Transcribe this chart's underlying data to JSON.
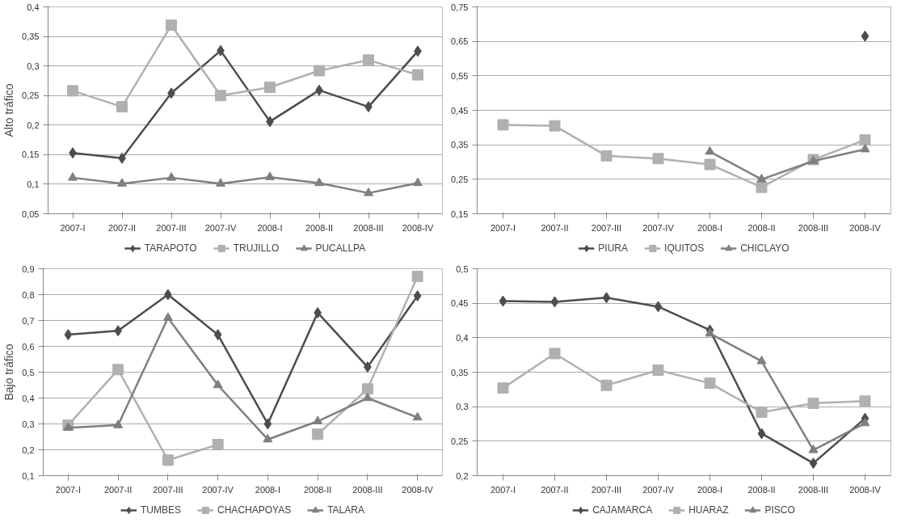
{
  "chart_data": [
    {
      "type": "line",
      "ylabel": "Alto tráfico",
      "categories": [
        "2007-I",
        "2007-II",
        "2007-III",
        "2007-IV",
        "2008-I",
        "2008-II",
        "2008-III",
        "2008-IV"
      ],
      "ylim": [
        0.05,
        0.4
      ],
      "yticks": [
        {
          "value": 0.05,
          "label": "0,05"
        },
        {
          "value": 0.1,
          "label": "0,1"
        },
        {
          "value": 0.15,
          "label": "0,15"
        },
        {
          "value": 0.2,
          "label": "0,2"
        },
        {
          "value": 0.25,
          "label": "0,25"
        },
        {
          "value": 0.3,
          "label": "0,3"
        },
        {
          "value": 0.35,
          "label": "0,35"
        },
        {
          "value": 0.4,
          "label": "0,4"
        }
      ],
      "grid": "y",
      "legend": "bottom",
      "series": [
        {
          "name": "TARAPOTO",
          "color": "#4d4d4d",
          "marker": "diamond",
          "values": [
            0.153,
            0.144,
            0.254,
            0.326,
            0.206,
            0.259,
            0.231,
            0.325
          ]
        },
        {
          "name": "TRUJILLO",
          "color": "#b0b0b0",
          "marker": "square",
          "values": [
            0.258,
            0.231,
            0.369,
            0.25,
            0.264,
            0.292,
            0.31,
            0.285
          ]
        },
        {
          "name": "PUCALLPA",
          "color": "#7f7f7f",
          "marker": "triangle",
          "values": [
            0.111,
            0.101,
            0.111,
            0.101,
            0.112,
            0.102,
            0.085,
            0.102
          ]
        }
      ]
    },
    {
      "type": "line",
      "categories": [
        "2007-I",
        "2007-II",
        "2007-III",
        "2007-IV",
        "2008-I",
        "2008-II",
        "2008-III",
        "2008-IV"
      ],
      "ylim": [
        0.15,
        0.75
      ],
      "yticks": [
        {
          "value": 0.15,
          "label": "0,15"
        },
        {
          "value": 0.25,
          "label": "0,25"
        },
        {
          "value": 0.35,
          "label": "0,35"
        },
        {
          "value": 0.45,
          "label": "0,45"
        },
        {
          "value": 0.55,
          "label": "0,55"
        },
        {
          "value": 0.65,
          "label": "0,65"
        },
        {
          "value": 0.75,
          "label": "0,75"
        }
      ],
      "grid": "y",
      "legend": "bottom",
      "series": [
        {
          "name": "PIURA",
          "color": "#4d4d4d",
          "marker": "diamond",
          "values": [
            null,
            null,
            null,
            null,
            null,
            null,
            null,
            0.665
          ]
        },
        {
          "name": "IQUITOS",
          "color": "#b0b0b0",
          "marker": "square",
          "values": [
            0.408,
            0.405,
            0.318,
            0.31,
            0.293,
            0.227,
            0.307,
            0.364
          ]
        },
        {
          "name": "CHICLAYO",
          "color": "#7f7f7f",
          "marker": "triangle",
          "values": [
            null,
            null,
            null,
            null,
            0.33,
            0.25,
            0.303,
            0.337
          ]
        }
      ]
    },
    {
      "type": "line",
      "ylabel": "Bajo tráfico",
      "categories": [
        "2007-I",
        "2007-II",
        "2007-III",
        "2007-IV",
        "2008-I",
        "2008-II",
        "2008-III",
        "2008-IV"
      ],
      "ylim": [
        0.1,
        0.9
      ],
      "yticks": [
        {
          "value": 0.1,
          "label": "0,1"
        },
        {
          "value": 0.2,
          "label": "0,2"
        },
        {
          "value": 0.3,
          "label": "0,3"
        },
        {
          "value": 0.4,
          "label": "0,4"
        },
        {
          "value": 0.5,
          "label": "0,5"
        },
        {
          "value": 0.6,
          "label": "0,6"
        },
        {
          "value": 0.7,
          "label": "0,7"
        },
        {
          "value": 0.8,
          "label": "0,8"
        },
        {
          "value": 0.9,
          "label": "0,9"
        }
      ],
      "grid": "y",
      "legend": "bottom",
      "series": [
        {
          "name": "TUMBES",
          "color": "#4d4d4d",
          "marker": "diamond",
          "values": [
            0.645,
            0.66,
            0.8,
            0.645,
            0.3,
            0.73,
            0.52,
            0.795
          ]
        },
        {
          "name": "CHACHAPOYAS",
          "color": "#b0b0b0",
          "marker": "square",
          "values": [
            0.295,
            0.51,
            0.16,
            0.22,
            null,
            0.26,
            0.435,
            0.87
          ]
        },
        {
          "name": "TALARA",
          "color": "#7f7f7f",
          "marker": "triangle",
          "values": [
            0.285,
            0.295,
            0.71,
            0.45,
            0.24,
            0.31,
            0.4,
            0.325
          ]
        }
      ]
    },
    {
      "type": "line",
      "categories": [
        "2007-I",
        "2007-II",
        "2007-III",
        "2007-IV",
        "2008-I",
        "2008-II",
        "2008-III",
        "2008-IV"
      ],
      "ylim": [
        0.2,
        0.5
      ],
      "yticks": [
        {
          "value": 0.2,
          "label": "0,2"
        },
        {
          "value": 0.25,
          "label": "0,25"
        },
        {
          "value": 0.3,
          "label": "0,3"
        },
        {
          "value": 0.35,
          "label": "0,35"
        },
        {
          "value": 0.4,
          "label": "0,4"
        },
        {
          "value": 0.45,
          "label": "0,45"
        },
        {
          "value": 0.5,
          "label": "0,5"
        }
      ],
      "grid": "y",
      "legend": "bottom",
      "series": [
        {
          "name": "CAJAMARCA",
          "color": "#4d4d4d",
          "marker": "diamond",
          "values": [
            0.453,
            0.452,
            0.458,
            0.445,
            0.411,
            0.261,
            0.218,
            0.283
          ]
        },
        {
          "name": "HUARAZ",
          "color": "#b0b0b0",
          "marker": "square",
          "values": [
            0.327,
            0.377,
            0.331,
            0.353,
            0.334,
            0.292,
            0.305,
            0.308
          ]
        },
        {
          "name": "PISCO",
          "color": "#7f7f7f",
          "marker": "triangle",
          "values": [
            null,
            null,
            null,
            null,
            0.406,
            0.366,
            0.237,
            0.276
          ]
        }
      ]
    }
  ]
}
